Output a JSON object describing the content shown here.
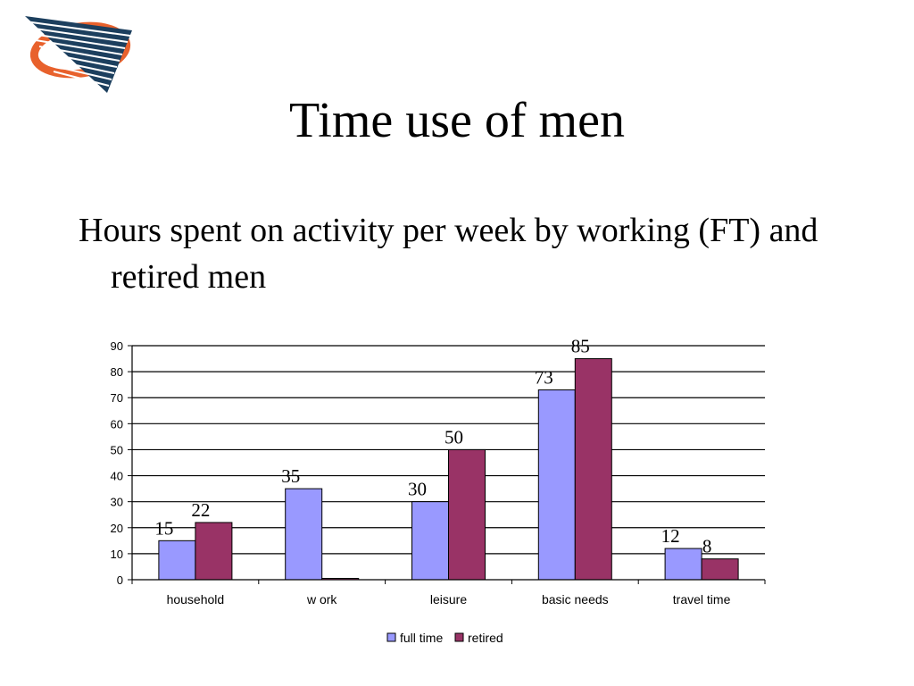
{
  "slide": {
    "title": "Time use of men",
    "subtitle": "Hours spent on activity per week by working (FT) and retired men"
  },
  "logo": {
    "icon": "swoosh-logo-icon",
    "colors": [
      "#e8612c",
      "#1c3f5e"
    ]
  },
  "chart_data": {
    "type": "bar",
    "categories": [
      "household",
      "w ork",
      "leisure",
      "basic needs",
      "travel time"
    ],
    "series": [
      {
        "name": "full time",
        "values": [
          15,
          35,
          30,
          73,
          12
        ],
        "labels": [
          "15",
          "35",
          "30",
          "73",
          "12"
        ],
        "color": "#9999ff"
      },
      {
        "name": "retired",
        "values": [
          22,
          0,
          50,
          85,
          8
        ],
        "labels": [
          "22",
          "",
          "50",
          "85",
          "8"
        ],
        "color": "#993366"
      }
    ],
    "ylim": [
      0,
      90
    ],
    "yticks": [
      0,
      10,
      20,
      30,
      40,
      50,
      60,
      70,
      80,
      90
    ],
    "grid": true,
    "legend": "bottom"
  }
}
